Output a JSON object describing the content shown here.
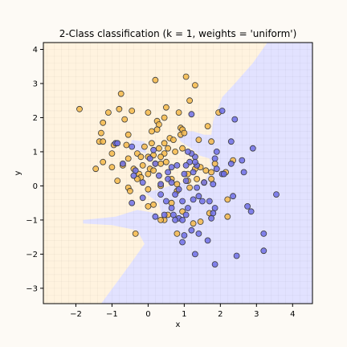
{
  "chart_data": {
    "type": "scatter",
    "title": "2-Class classification (k = 1, weights = 'uniform')",
    "xlabel": "x",
    "ylabel": "y",
    "xlim": [
      -2.9,
      4.55
    ],
    "ylim": [
      -3.45,
      4.2
    ],
    "xticks": [
      -2,
      -1,
      0,
      1,
      2,
      3,
      4
    ],
    "yticks": [
      -3,
      -2,
      -1,
      0,
      1,
      2,
      3,
      4
    ],
    "grid": true,
    "legend": "none",
    "colors": {
      "class_orange": "#f4b84a",
      "class_blue": "#6f6fe6",
      "region_orange": "#fff3df",
      "region_blue": "#e2e2ff",
      "page_background": "#fdfaf5"
    },
    "decision_regions": {
      "blue": [
        [
          [
            -1.8,
            -1.0
          ],
          [
            -0.9,
            -0.9
          ],
          [
            -0.3,
            -0.7
          ],
          [
            0.2,
            -0.8
          ],
          [
            0.4,
            -1.0
          ],
          [
            0.3,
            -0.5
          ],
          [
            -0.1,
            -0.2
          ],
          [
            0.3,
            -0.1
          ],
          [
            0.6,
            0.0
          ],
          [
            0.9,
            0.1
          ],
          [
            1.3,
            0.0
          ],
          [
            1.6,
            0.2
          ],
          [
            1.75,
            0.5
          ],
          [
            1.7,
            0.8
          ],
          [
            1.4,
            0.9
          ],
          [
            1.2,
            1.1
          ],
          [
            0.9,
            1.3
          ],
          [
            0.8,
            1.5
          ],
          [
            1.0,
            1.6
          ],
          [
            1.25,
            1.6
          ],
          [
            1.55,
            1.5
          ],
          [
            1.75,
            1.5
          ],
          [
            1.8,
            1.9
          ],
          [
            2.05,
            2.6
          ],
          [
            2.4,
            3.0
          ],
          [
            2.9,
            3.6
          ],
          [
            3.3,
            4.2
          ],
          [
            4.55,
            4.2
          ],
          [
            4.55,
            -3.45
          ],
          [
            -1.3,
            -3.45
          ],
          [
            -0.5,
            -2.3
          ],
          [
            -0.1,
            -1.7
          ],
          [
            -0.3,
            -1.3
          ],
          [
            -1.0,
            -1.15
          ],
          [
            -1.8,
            -1.1
          ]
        ],
        [
          [
            -0.35,
            1.05
          ],
          [
            -0.05,
            0.95
          ],
          [
            -0.1,
            1.3
          ],
          [
            -0.45,
            1.35
          ],
          [
            -0.5,
            1.15
          ]
        ]
      ]
    },
    "series": [
      {
        "name": "",
        "color": "#f4b84a",
        "points": [
          [
            -1.9,
            2.25
          ],
          [
            0.2,
            3.1
          ],
          [
            1.05,
            3.2
          ],
          [
            1.3,
            2.95
          ],
          [
            -0.75,
            2.7
          ],
          [
            -1.1,
            2.15
          ],
          [
            -0.45,
            2.2
          ],
          [
            -0.8,
            2.25
          ],
          [
            -1.25,
            1.85
          ],
          [
            -0.65,
            1.95
          ],
          [
            -1.3,
            1.55
          ],
          [
            -1.35,
            1.3
          ],
          [
            -1.25,
            1.3
          ],
          [
            -0.55,
            1.5
          ],
          [
            0.25,
            1.9
          ],
          [
            0.3,
            1.8
          ],
          [
            0.45,
            2.0
          ],
          [
            0.25,
            1.65
          ],
          [
            0.1,
            1.6
          ],
          [
            0.0,
            2.15
          ],
          [
            0.5,
            2.3
          ],
          [
            0.85,
            2.15
          ],
          [
            1.15,
            2.5
          ],
          [
            1.95,
            2.15
          ],
          [
            1.65,
            1.75
          ],
          [
            1.75,
            1.3
          ],
          [
            0.9,
            1.7
          ],
          [
            0.9,
            1.5
          ],
          [
            0.45,
            1.25
          ],
          [
            0.6,
            1.4
          ],
          [
            -0.95,
            1.2
          ],
          [
            -0.6,
            1.2
          ],
          [
            -0.1,
            1.15
          ],
          [
            0.3,
            1.1
          ],
          [
            0.55,
            1.1
          ],
          [
            0.95,
            1.1
          ],
          [
            0.75,
            1.0
          ],
          [
            0.45,
            0.95
          ],
          [
            -0.3,
            0.95
          ],
          [
            -0.2,
            0.85
          ],
          [
            0.15,
            0.9
          ],
          [
            0.0,
            0.85
          ],
          [
            -0.55,
            0.8
          ],
          [
            -1.0,
            0.95
          ],
          [
            0.35,
            0.65
          ],
          [
            -0.15,
            0.6
          ],
          [
            -0.7,
            0.6
          ],
          [
            -0.4,
            0.5
          ],
          [
            -1.0,
            0.55
          ],
          [
            -0.25,
            0.35
          ],
          [
            -0.2,
            0.25
          ],
          [
            0.0,
            0.35
          ],
          [
            0.05,
            0.5
          ],
          [
            0.15,
            0.45
          ],
          [
            -0.3,
            0.2
          ],
          [
            -0.85,
            0.15
          ],
          [
            -0.55,
            -0.05
          ],
          [
            -0.5,
            -0.15
          ],
          [
            0.0,
            -0.1
          ],
          [
            -1.45,
            0.5
          ],
          [
            -1.25,
            0.7
          ],
          [
            0.35,
            0.0
          ],
          [
            0.65,
            0.2
          ],
          [
            0.8,
            0.05
          ],
          [
            0.8,
            -0.15
          ],
          [
            1.15,
            -0.05
          ],
          [
            1.1,
            0.15
          ],
          [
            1.1,
            0.35
          ],
          [
            1.3,
            0.5
          ],
          [
            1.45,
            0.55
          ],
          [
            1.6,
            0.45
          ],
          [
            1.75,
            0.2
          ],
          [
            1.55,
            0.1
          ],
          [
            1.75,
            0.4
          ],
          [
            2.35,
            0.75
          ],
          [
            2.15,
            0.4
          ],
          [
            1.85,
            0.65
          ],
          [
            1.35,
            0.2
          ],
          [
            0.15,
            -0.55
          ],
          [
            0.0,
            -0.6
          ],
          [
            0.55,
            -0.85
          ],
          [
            0.45,
            -1.0
          ],
          [
            0.35,
            -1.0
          ],
          [
            0.8,
            -1.4
          ],
          [
            1.25,
            -1.1
          ],
          [
            1.45,
            -1.05
          ],
          [
            1.7,
            -0.8
          ],
          [
            2.2,
            -0.9
          ],
          [
            2.2,
            -0.4
          ],
          [
            0.95,
            -0.75
          ],
          [
            0.65,
            -0.5
          ],
          [
            -0.35,
            -1.4
          ],
          [
            0.95,
            1.65
          ],
          [
            0.7,
            1.35
          ],
          [
            0.1,
            1.25
          ],
          [
            1.0,
            1.55
          ],
          [
            1.4,
            1.35
          ],
          [
            0.35,
            0.85
          ],
          [
            0.5,
            0.7
          ],
          [
            0.2,
            0.65
          ]
        ]
      },
      {
        "name": "",
        "color": "#6f6fe6",
        "points": [
          [
            -0.9,
            1.25
          ],
          [
            -0.45,
            1.15
          ],
          [
            -0.7,
            0.65
          ],
          [
            -0.35,
            0.45
          ],
          [
            -0.4,
            0.3
          ],
          [
            0.3,
            0.3
          ],
          [
            0.35,
            0.05
          ],
          [
            0.35,
            -0.25
          ],
          [
            0.5,
            -0.45
          ],
          [
            0.65,
            -0.65
          ],
          [
            0.85,
            -0.95
          ],
          [
            0.7,
            -0.85
          ],
          [
            0.75,
            -1.0
          ],
          [
            0.95,
            -1.0
          ],
          [
            1.05,
            -0.85
          ],
          [
            1.1,
            -0.65
          ],
          [
            1.25,
            -0.4
          ],
          [
            1.5,
            -0.45
          ],
          [
            1.7,
            -0.45
          ],
          [
            1.85,
            -0.65
          ],
          [
            1.8,
            -0.8
          ],
          [
            1.75,
            -0.95
          ],
          [
            1.2,
            -1.3
          ],
          [
            1.0,
            -1.45
          ],
          [
            0.95,
            -1.65
          ],
          [
            1.4,
            -1.4
          ],
          [
            1.65,
            -1.6
          ],
          [
            1.3,
            -2.0
          ],
          [
            1.85,
            -2.3
          ],
          [
            2.45,
            -2.05
          ],
          [
            3.2,
            -1.4
          ],
          [
            3.2,
            -1.9
          ],
          [
            3.55,
            -0.25
          ],
          [
            2.75,
            -0.6
          ],
          [
            2.85,
            -0.75
          ],
          [
            2.35,
            -0.3
          ],
          [
            2.05,
            0.35
          ],
          [
            2.1,
            0.35
          ],
          [
            2.3,
            0.65
          ],
          [
            2.65,
            0.4
          ],
          [
            2.6,
            0.75
          ],
          [
            2.9,
            1.1
          ],
          [
            2.3,
            1.3
          ],
          [
            2.4,
            1.95
          ],
          [
            2.05,
            2.2
          ],
          [
            1.2,
            2.1
          ],
          [
            1.9,
            1.0
          ],
          [
            1.85,
            0.8
          ],
          [
            1.9,
            0.5
          ],
          [
            1.8,
            0.05
          ],
          [
            1.55,
            0.1
          ],
          [
            1.35,
            -0.05
          ],
          [
            1.05,
            0.15
          ],
          [
            1.0,
            0.35
          ],
          [
            1.25,
            0.4
          ],
          [
            1.35,
            0.6
          ],
          [
            1.3,
            0.85
          ],
          [
            1.2,
            0.95
          ],
          [
            1.1,
            1.0
          ],
          [
            1.15,
            0.7
          ],
          [
            1.05,
            0.6
          ],
          [
            1.3,
            0.7
          ],
          [
            0.8,
            0.6
          ],
          [
            0.65,
            0.55
          ],
          [
            0.55,
            0.4
          ],
          [
            0.55,
            0.2
          ],
          [
            0.65,
            0.1
          ],
          [
            0.85,
            -0.1
          ],
          [
            0.75,
            -0.25
          ],
          [
            0.95,
            -0.45
          ],
          [
            1.4,
            -0.3
          ],
          [
            0.05,
            0.8
          ],
          [
            0.15,
            1.05
          ],
          [
            0.2,
            0.65
          ],
          [
            -0.15,
            0.1
          ],
          [
            -0.15,
            -0.35
          ],
          [
            -0.45,
            -0.5
          ],
          [
            0.2,
            -0.9
          ],
          [
            0.45,
            -0.85
          ],
          [
            -0.85,
            1.25
          ]
        ]
      }
    ]
  }
}
